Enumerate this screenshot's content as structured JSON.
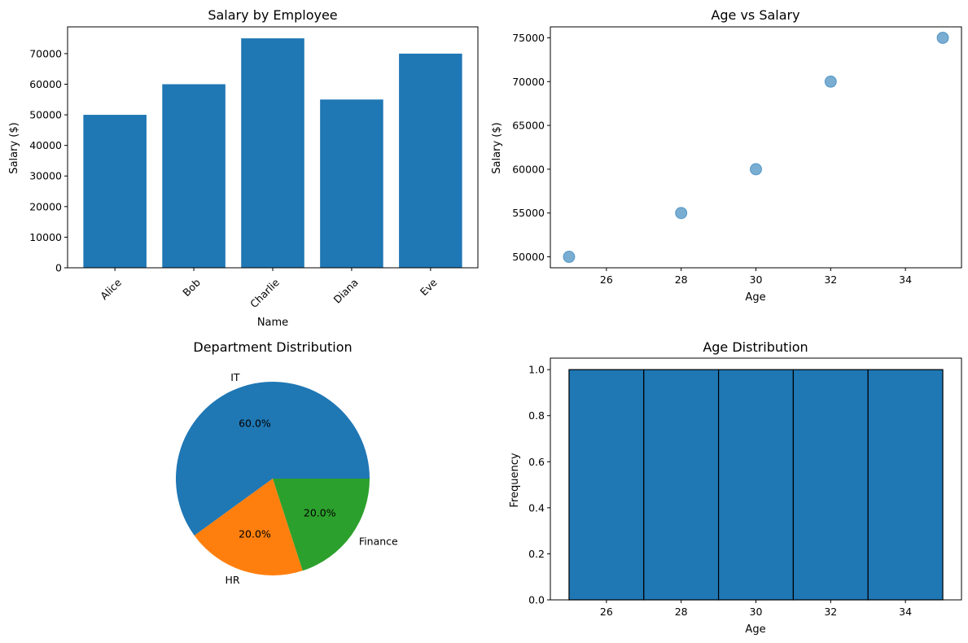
{
  "chart_data": [
    {
      "id": "bar",
      "type": "bar",
      "title": "Salary by Employee",
      "xlabel": "Name",
      "ylabel": "Salary ($)",
      "categories": [
        "Alice",
        "Bob",
        "Charlie",
        "Diana",
        "Eve"
      ],
      "values": [
        50000,
        60000,
        75000,
        55000,
        70000
      ],
      "ylim": [
        0,
        78750
      ],
      "yticks": [
        "0",
        "10000",
        "20000",
        "30000",
        "40000",
        "50000",
        "60000",
        "70000"
      ],
      "color": "#1f77b4"
    },
    {
      "id": "scatter",
      "type": "scatter",
      "title": "Age vs Salary",
      "xlabel": "Age",
      "ylabel": "Salary ($)",
      "points": [
        {
          "x": 25,
          "y": 50000
        },
        {
          "x": 28,
          "y": 55000
        },
        {
          "x": 30,
          "y": 60000
        },
        {
          "x": 32,
          "y": 70000
        },
        {
          "x": 35,
          "y": 75000
        }
      ],
      "xlim": [
        24.5,
        35.5
      ],
      "ylim": [
        48750,
        76250
      ],
      "xticks": [
        "26",
        "28",
        "30",
        "32",
        "34"
      ],
      "yticks": [
        "50000",
        "55000",
        "60000",
        "65000",
        "70000",
        "75000"
      ],
      "color": "#1f77b4"
    },
    {
      "id": "pie",
      "type": "pie",
      "title": "Department Distribution",
      "slices": [
        {
          "label": "IT",
          "value": 60,
          "pct": "60.0%",
          "color": "#1f77b4"
        },
        {
          "label": "HR",
          "value": 20,
          "pct": "20.0%",
          "color": "#ff7f0e"
        },
        {
          "label": "Finance",
          "value": 20,
          "pct": "20.0%",
          "color": "#2ca02c"
        }
      ]
    },
    {
      "id": "hist",
      "type": "bar",
      "title": "Age Distribution",
      "xlabel": "Age",
      "ylabel": "Frequency",
      "bins": [
        {
          "from": 25,
          "to": 27,
          "count": 1
        },
        {
          "from": 27,
          "to": 29,
          "count": 1
        },
        {
          "from": 29,
          "to": 31,
          "count": 1
        },
        {
          "from": 31,
          "to": 33,
          "count": 1
        },
        {
          "from": 33,
          "to": 35,
          "count": 1
        }
      ],
      "xlim": [
        24.5,
        35.5
      ],
      "ylim": [
        0,
        1.05
      ],
      "xticks": [
        "26",
        "28",
        "30",
        "32",
        "34"
      ],
      "yticks": [
        "0.0",
        "0.2",
        "0.4",
        "0.6",
        "0.8",
        "1.0"
      ],
      "color": "#1f77b4"
    }
  ]
}
